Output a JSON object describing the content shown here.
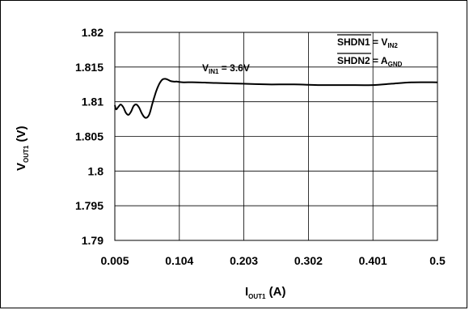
{
  "chart_data": {
    "type": "line",
    "xlabel": {
      "main": "I",
      "sub": "OUT1",
      "tail": " (A)"
    },
    "ylabel": {
      "main": "V",
      "sub": "OUT1",
      "tail": " (V)"
    },
    "xlim": [
      0.005,
      0.5
    ],
    "ylim": [
      1.79,
      1.82
    ],
    "x_ticks": [
      "0.005",
      "0.104",
      "0.203",
      "0.302",
      "0.401",
      "0.5"
    ],
    "y_ticks": [
      "1.82",
      "1.815",
      "1.81",
      "1.805",
      "1.8",
      "1.795",
      "1.79"
    ],
    "grid": true,
    "annotations": {
      "vin": {
        "main": "V",
        "sub": "IN1",
        "tail": " = 3.6V"
      },
      "shdn1": {
        "main": "SHDN1",
        "mid": " = V",
        "sub": "IN2"
      },
      "shdn2": {
        "main": "SHDN2",
        "mid": " = A",
        "sub": "GND"
      }
    },
    "series": [
      {
        "color": "#000000",
        "x": [
          0.005,
          0.007,
          0.01,
          0.014,
          0.018,
          0.022,
          0.026,
          0.03,
          0.034,
          0.038,
          0.042,
          0.046,
          0.05,
          0.054,
          0.058,
          0.062,
          0.066,
          0.07,
          0.074,
          0.078,
          0.082,
          0.086,
          0.09,
          0.095,
          0.1,
          0.11,
          0.13,
          0.16,
          0.2,
          0.24,
          0.28,
          0.32,
          0.36,
          0.4,
          0.43,
          0.46,
          0.5
        ],
        "y": [
          1.8095,
          1.8089,
          1.8092,
          1.8096,
          1.8092,
          1.8084,
          1.8081,
          1.8086,
          1.8094,
          1.8096,
          1.8092,
          1.8084,
          1.8078,
          1.8077,
          1.8082,
          1.8095,
          1.8108,
          1.8119,
          1.8127,
          1.8132,
          1.8133,
          1.8132,
          1.813,
          1.8129,
          1.8129,
          1.8128,
          1.8128,
          1.8127,
          1.8126,
          1.8125,
          1.8125,
          1.8124,
          1.8124,
          1.8124,
          1.8126,
          1.8128,
          1.8128
        ]
      }
    ]
  }
}
